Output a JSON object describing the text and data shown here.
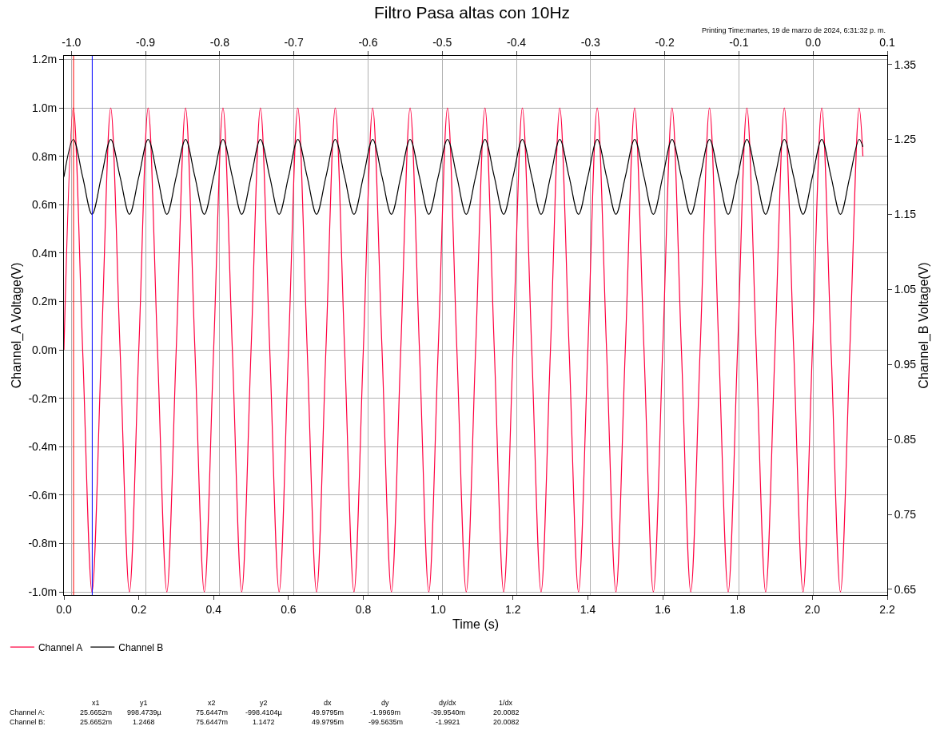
{
  "chart_data": {
    "type": "line",
    "title": "Filtro Pasa altas con 10Hz",
    "xlabel": "Time (s)",
    "ylabel": "Channel_A Voltage(V)",
    "y2label": "Channel_B Voltage(V)",
    "x": [
      0,
      0.025,
      0.05,
      0.075,
      0.1,
      0.125,
      0.15,
      0.175,
      0.2,
      0.225,
      0.25,
      0.275,
      0.3,
      0.325,
      0.35,
      0.375,
      0.4,
      0.425,
      0.45,
      0.475,
      0.5,
      0.525,
      0.55,
      0.575,
      0.6,
      0.625,
      0.65,
      0.675,
      0.7,
      0.725,
      0.75,
      0.775,
      0.8,
      0.825,
      0.85,
      0.875,
      0.9,
      0.925,
      0.95,
      0.975,
      1.0,
      1.025,
      1.05,
      1.075,
      1.1,
      1.125,
      1.15,
      1.175,
      1.2,
      1.225,
      1.25,
      1.275,
      1.3,
      1.325,
      1.35,
      1.375,
      1.4,
      1.425,
      1.45,
      1.475,
      1.5,
      1.525,
      1.55,
      1.575,
      1.6,
      1.625,
      1.65,
      1.675,
      1.7,
      1.725,
      1.75,
      1.775,
      1.8,
      1.825,
      1.85,
      1.875,
      1.9,
      1.925,
      1.95,
      1.975,
      2.0,
      2.025,
      2.05,
      2.075,
      2.1,
      2.125,
      2.135
    ],
    "series": [
      {
        "name": "Channel A",
        "color": "#ff0040",
        "values": [
          0,
          1,
          0,
          -1,
          0,
          1,
          0,
          -1,
          0,
          1,
          0,
          -1,
          0,
          1,
          0,
          -1,
          0,
          1,
          0,
          -1,
          0,
          1,
          0,
          -1,
          0,
          1,
          0,
          -1,
          0,
          1,
          0,
          -1,
          0,
          1,
          0,
          -1,
          0,
          1,
          0,
          -1,
          0,
          1,
          0,
          -1,
          0,
          1,
          0,
          -1,
          0,
          1,
          0,
          -1,
          0,
          1,
          0,
          -1,
          0,
          1,
          0,
          -1,
          0,
          1,
          0,
          -1,
          0,
          1,
          0,
          -1,
          0,
          1,
          0,
          -1,
          0,
          1,
          0,
          -1,
          0,
          1,
          0,
          -1,
          0,
          1,
          0,
          -1,
          0,
          1,
          0.8
        ]
      },
      {
        "name": "Channel B",
        "color": "#000000",
        "axis": "y2",
        "values": [
          1.2,
          1.25,
          1.2,
          1.15,
          1.2,
          1.25,
          1.2,
          1.15,
          1.2,
          1.25,
          1.2,
          1.15,
          1.2,
          1.25,
          1.2,
          1.15,
          1.2,
          1.25,
          1.2,
          1.15,
          1.2,
          1.25,
          1.2,
          1.15,
          1.2,
          1.25,
          1.2,
          1.15,
          1.2,
          1.25,
          1.2,
          1.15,
          1.2,
          1.25,
          1.2,
          1.15,
          1.2,
          1.25,
          1.2,
          1.15,
          1.2,
          1.25,
          1.2,
          1.15,
          1.2,
          1.25,
          1.2,
          1.15,
          1.2,
          1.25,
          1.2,
          1.15,
          1.2,
          1.25,
          1.2,
          1.15,
          1.2,
          1.25,
          1.2,
          1.15,
          1.2,
          1.25,
          1.2,
          1.15,
          1.2,
          1.25,
          1.2,
          1.15,
          1.2,
          1.25,
          1.2,
          1.15,
          1.2,
          1.25,
          1.2,
          1.15,
          1.2,
          1.25,
          1.2,
          1.15,
          1.2,
          1.25,
          1.2,
          1.15,
          1.2,
          1.25,
          1.24
        ]
      }
    ],
    "xlim": [
      0,
      2.2
    ],
    "xticks": [
      {
        "value": 0,
        "label": "0.0"
      },
      {
        "value": 0.2,
        "label": "0.2"
      },
      {
        "value": 0.4,
        "label": "0.4"
      },
      {
        "value": 0.6,
        "label": "0.6"
      },
      {
        "value": 0.8,
        "label": "0.8"
      },
      {
        "value": 1.0,
        "label": "1.0"
      },
      {
        "value": 1.2,
        "label": "1.2"
      },
      {
        "value": 1.4,
        "label": "1.4"
      },
      {
        "value": 1.6,
        "label": "1.6"
      },
      {
        "value": 1.8,
        "label": "1.8"
      },
      {
        "value": 2.0,
        "label": "2.0"
      },
      {
        "value": 2.2,
        "label": "2.2"
      }
    ],
    "x2lim": [
      -1.01,
      0.1
    ],
    "x2ticks": [
      {
        "value": -1.0,
        "label": "-1.0"
      },
      {
        "value": -0.9,
        "label": "-0.9"
      },
      {
        "value": -0.8,
        "label": "-0.8"
      },
      {
        "value": -0.7,
        "label": "-0.7"
      },
      {
        "value": -0.6,
        "label": "-0.6"
      },
      {
        "value": -0.5,
        "label": "-0.5"
      },
      {
        "value": -0.4,
        "label": "-0.4"
      },
      {
        "value": -0.3,
        "label": "-0.3"
      },
      {
        "value": -0.2,
        "label": "-0.2"
      },
      {
        "value": -0.1,
        "label": "-0.1"
      },
      {
        "value": 0,
        "label": "0.0"
      },
      {
        "value": 0.1,
        "label": "0.1"
      }
    ],
    "ylim": [
      -1.013,
      1.215
    ],
    "yticks": [
      {
        "value": -1.0,
        "label": "-1.0m"
      },
      {
        "value": -0.8,
        "label": "-0.8m"
      },
      {
        "value": -0.6,
        "label": "-0.6m"
      },
      {
        "value": -0.4,
        "label": "-0.4m"
      },
      {
        "value": -0.2,
        "label": "-0.2m"
      },
      {
        "value": 0,
        "label": "0.0m"
      },
      {
        "value": 0.2,
        "label": "0.2m"
      },
      {
        "value": 0.4,
        "label": "0.4m"
      },
      {
        "value": 0.6,
        "label": "0.6m"
      },
      {
        "value": 0.8,
        "label": "0.8m"
      },
      {
        "value": 1.0,
        "label": "1.0m"
      },
      {
        "value": 1.2,
        "label": "1.2m"
      }
    ],
    "y2lim": [
      0.6425,
      1.3613
    ],
    "y2ticks": [
      0.65,
      0.75,
      0.85,
      0.95,
      1.05,
      1.15,
      1.25,
      1.35
    ],
    "ref_lines": [
      {
        "axis": "x",
        "value": 0.0257,
        "color": "#ff0000"
      },
      {
        "axis": "x",
        "value": 0.0756,
        "color": "#0000ff"
      }
    ],
    "grid": true,
    "legend": "bottom left",
    "marker": "none",
    "line_style": "solid",
    "annotations": [
      "Printing Time:martes, 19 de marzo de 2024, 6:31:32 p. m.",
      "x1",
      "y1",
      "x2",
      "y2",
      "dx",
      "dy",
      "dy/dx",
      "1/dx",
      "Channel A:",
      "25.6652m",
      "998.4739µ",
      "75.6447m",
      "-998.4104µ",
      "49.9795m",
      "-1.9969m",
      "-39.9540m",
      "20.0082",
      "Channel B:",
      "25.6652m",
      "1.2468",
      "75.6447m",
      "1.1472",
      "49.9795m",
      "-99.5635m",
      "-1.9921",
      "20.0082"
    ]
  }
}
